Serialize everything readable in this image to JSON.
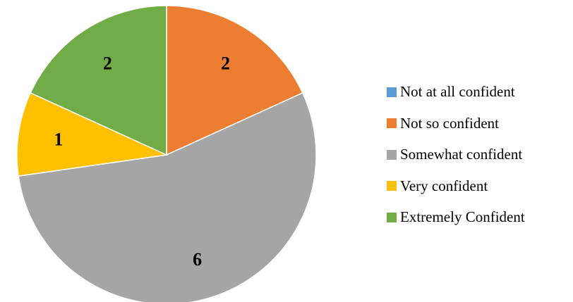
{
  "chart_data": {
    "type": "pie",
    "title": "",
    "categories": [
      "Not at all confident",
      "Not so confident",
      "Somewhat confident",
      "Very confident",
      "Extremely Confident"
    ],
    "values": [
      0,
      2,
      6,
      1,
      2
    ],
    "colors": [
      "#5B9BD5",
      "#ED7D31",
      "#A5A5A5",
      "#FFC000",
      "#70AD47"
    ],
    "data_labels": [
      "",
      "2",
      "6",
      "1",
      "2"
    ],
    "start_angle_deg": 0,
    "direction": "clockwise",
    "legend_position": "right"
  }
}
